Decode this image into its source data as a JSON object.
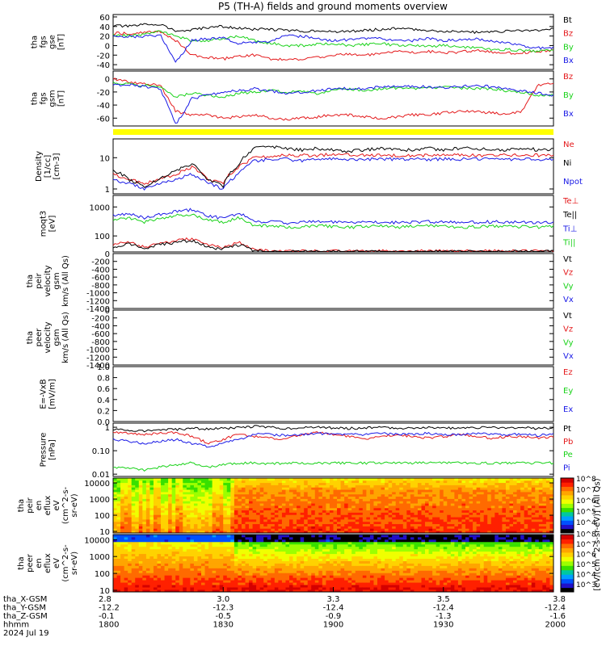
{
  "title": "P5 (TH-A) fields and ground moments overview",
  "colors": {
    "black": "#000000",
    "red": "#e41a1c",
    "green": "#19d219",
    "blue": "#1a1ae6",
    "yellow": "#ffff00"
  },
  "chart_data": [
    {
      "id": "fgs_gse",
      "type": "line",
      "ylabel": [
        "tha",
        "fgs",
        "gse",
        "[nT]"
      ],
      "ylim": [
        -50,
        65
      ],
      "yticks": [
        -40,
        -20,
        0,
        20,
        40,
        60
      ],
      "tick_labels": [
        "-40",
        "-20",
        "0",
        "20",
        "40",
        "60"
      ],
      "log": false,
      "series": [
        {
          "name": "Bt",
          "color": "black",
          "values": [
            42,
            40,
            44,
            45,
            30,
            32,
            38,
            40,
            36,
            34,
            34,
            32,
            30,
            32,
            28,
            30,
            32,
            34,
            36,
            34,
            32,
            30,
            30,
            28,
            28,
            30,
            32,
            32,
            34
          ]
        },
        {
          "name": "Bz",
          "color": "red",
          "values": [
            26,
            25,
            27,
            30,
            10,
            -20,
            -25,
            -28,
            -22,
            -20,
            -28,
            -30,
            -28,
            -25,
            -20,
            -18,
            -20,
            -18,
            -12,
            -14,
            -12,
            -15,
            -14,
            -10,
            -14,
            -16,
            -15,
            -12,
            -10
          ]
        },
        {
          "name": "By",
          "color": "green",
          "values": [
            22,
            20,
            24,
            30,
            20,
            10,
            10,
            15,
            20,
            10,
            5,
            0,
            0,
            3,
            5,
            0,
            2,
            5,
            0,
            0,
            -2,
            0,
            -4,
            -5,
            -8,
            -8,
            -10,
            -12,
            -10
          ]
        },
        {
          "name": "Bx",
          "color": "blue",
          "values": [
            20,
            18,
            19,
            22,
            -35,
            10,
            15,
            15,
            5,
            5,
            10,
            20,
            20,
            15,
            10,
            12,
            15,
            15,
            10,
            10,
            15,
            10,
            12,
            15,
            10,
            5,
            0,
            -5,
            -5
          ]
        }
      ]
    },
    {
      "id": "fgs_gsm",
      "type": "line",
      "ylabel": [
        "tha",
        "fgs",
        "gsm",
        "[nT]"
      ],
      "ylim": [
        -72,
        12
      ],
      "yticks": [
        -60,
        -40,
        -20,
        0
      ],
      "tick_labels": [
        "-60",
        "-40",
        "-20",
        "0"
      ],
      "log": false,
      "series": [
        {
          "name": "Bz",
          "color": "red",
          "values": [
            0,
            -5,
            -8,
            -10,
            -50,
            -55,
            -55,
            -60,
            -58,
            -55,
            -60,
            -62,
            -60,
            -58,
            -55,
            -55,
            -58,
            -60,
            -58,
            -55,
            -55,
            -52,
            -50,
            -50,
            -52,
            -55,
            -50,
            -10,
            -5
          ]
        },
        {
          "name": "By",
          "color": "green",
          "values": [
            -5,
            -8,
            -10,
            -12,
            -28,
            -22,
            -25,
            -28,
            -22,
            -20,
            -18,
            -20,
            -20,
            -22,
            -18,
            -15,
            -18,
            -15,
            -14,
            -15,
            -14,
            -12,
            -14,
            -15,
            -15,
            -18,
            -20,
            -25,
            -25
          ]
        },
        {
          "name": "Bx",
          "color": "blue",
          "values": [
            -10,
            -8,
            -12,
            -15,
            -70,
            -30,
            -25,
            -20,
            -18,
            -15,
            -18,
            -22,
            -20,
            -18,
            -15,
            -14,
            -15,
            -12,
            -12,
            -12,
            -12,
            -14,
            -12,
            -10,
            -12,
            -15,
            -18,
            -22,
            -25
          ]
        }
      ]
    },
    {
      "id": "density",
      "type": "line",
      "ylabel": [
        "Density",
        "[1/cc]",
        "[cm-3]"
      ],
      "ylim": [
        0.7,
        40
      ],
      "yticks": [
        1,
        10
      ],
      "tick_labels": [
        "1",
        "10"
      ],
      "log": true,
      "series": [
        {
          "name": "Ne",
          "color": "red",
          "values": [
            3,
            2,
            1.5,
            2,
            3,
            5,
            2,
            1.5,
            5,
            10,
            11,
            12,
            12,
            12,
            13,
            13,
            12,
            12,
            12,
            12,
            12,
            12,
            12,
            12,
            12,
            12,
            12,
            12,
            12
          ]
        },
        {
          "name": "Ni",
          "color": "black",
          "values": [
            4,
            2,
            1.2,
            2,
            4,
            6,
            2,
            1.2,
            6,
            20,
            22,
            20,
            18,
            20,
            18,
            16,
            18,
            20,
            18,
            18,
            20,
            18,
            20,
            20,
            18,
            18,
            20,
            18,
            18
          ]
        },
        {
          "name": "Npot",
          "color": "blue",
          "values": [
            2,
            1.5,
            1,
            1.5,
            2,
            3,
            1.5,
            1,
            3,
            8,
            9,
            9,
            8,
            9,
            9,
            9,
            9,
            9,
            9,
            9,
            9,
            9,
            9,
            9,
            9,
            9,
            9,
            9,
            9
          ]
        }
      ]
    },
    {
      "id": "moments",
      "type": "line",
      "ylabel": [
        "moqt3",
        "[eV]"
      ],
      "ylim": [
        28,
        2500
      ],
      "yticks": [
        100,
        1000
      ],
      "tick_labels": [
        "100",
        "1000"
      ],
      "log": true,
      "series": [
        {
          "name": "Te⊥",
          "color": "red",
          "values": [
            50,
            60,
            40,
            55,
            70,
            80,
            50,
            40,
            60,
            32,
            30,
            30,
            30,
            30,
            30,
            30,
            30,
            30,
            30,
            30,
            30,
            30,
            30,
            30,
            30,
            30,
            30,
            30,
            30
          ]
        },
        {
          "name": "Te||",
          "color": "black",
          "values": [
            40,
            55,
            35,
            50,
            60,
            70,
            40,
            35,
            50,
            30,
            29,
            29,
            29,
            29,
            29,
            29,
            29,
            29,
            29,
            29,
            29,
            29,
            29,
            29,
            29,
            29,
            29,
            29,
            29
          ]
        },
        {
          "name": "Ti⊥",
          "color": "blue",
          "values": [
            500,
            600,
            400,
            550,
            700,
            800,
            500,
            400,
            600,
            300,
            320,
            280,
            300,
            320,
            300,
            280,
            300,
            310,
            290,
            300,
            310,
            300,
            290,
            300,
            310,
            300,
            300,
            290,
            300
          ]
        },
        {
          "name": "Ti||",
          "color": "green",
          "values": [
            350,
            420,
            300,
            400,
            500,
            550,
            350,
            300,
            420,
            220,
            230,
            200,
            210,
            230,
            210,
            200,
            210,
            220,
            200,
            210,
            220,
            210,
            200,
            210,
            220,
            210,
            210,
            200,
            210
          ]
        }
      ]
    },
    {
      "id": "peir_vel",
      "type": "line",
      "ylabel": [
        "tha",
        "peir",
        "velocity",
        "gsm",
        "km/s (All Qs)"
      ],
      "ylim": [
        -1400,
        0
      ],
      "yticks": [
        -1400,
        -1200,
        -1000,
        -800,
        -600,
        -400,
        -200,
        0
      ],
      "tick_labels": [
        "-1400",
        "-1200",
        "-1000",
        "-800",
        "-600",
        "-400",
        "-200",
        "0"
      ],
      "log": false,
      "series": [
        {
          "name": "Vt",
          "color": "black",
          "values": []
        },
        {
          "name": "Vz",
          "color": "red",
          "values": []
        },
        {
          "name": "Vy",
          "color": "green",
          "values": []
        },
        {
          "name": "Vx",
          "color": "blue",
          "values": []
        }
      ]
    },
    {
      "id": "peer_vel",
      "type": "line",
      "ylabel": [
        "tha",
        "peer",
        "velocity",
        "gsm",
        "km/s (All Qs)"
      ],
      "ylim": [
        -1400,
        0
      ],
      "yticks": [
        -1400,
        -1200,
        -1000,
        -800,
        -600,
        -400,
        -200,
        0
      ],
      "tick_labels": [
        "-1400",
        "-1200",
        "-1000",
        "-800",
        "-600",
        "-400",
        "-200",
        "0"
      ],
      "log": false,
      "series": [
        {
          "name": "Vt",
          "color": "black",
          "values": []
        },
        {
          "name": "Vz",
          "color": "red",
          "values": []
        },
        {
          "name": "Vy",
          "color": "green",
          "values": []
        },
        {
          "name": "Vx",
          "color": "blue",
          "values": []
        }
      ]
    },
    {
      "id": "efield",
      "type": "line",
      "ylabel": [
        "E=-VxB",
        "[mV/m]"
      ],
      "ylim": [
        0,
        1
      ],
      "yticks": [
        0,
        0.2,
        0.4,
        0.6,
        0.8,
        1.0
      ],
      "tick_labels": [
        "0.0",
        "0.2",
        "0.4",
        "0.6",
        "0.8",
        "1.0"
      ],
      "log": false,
      "series": [
        {
          "name": "Ez",
          "color": "red",
          "values": []
        },
        {
          "name": "Ey",
          "color": "green",
          "values": []
        },
        {
          "name": "Ex",
          "color": "blue",
          "values": []
        }
      ]
    },
    {
      "id": "pressure",
      "type": "line",
      "ylabel": [
        "Pressure",
        "[nPa]"
      ],
      "ylim": [
        0.008,
        1.5
      ],
      "yticks": [
        0.01,
        0.1,
        1
      ],
      "tick_labels": [
        "0.01",
        "0.10",
        "1"
      ],
      "log": true,
      "series": [
        {
          "name": "Pt",
          "color": "black",
          "values": [
            0.8,
            0.75,
            0.7,
            0.78,
            0.8,
            0.9,
            0.85,
            0.9,
            0.95,
            1.1,
            1.0,
            0.9,
            0.95,
            1.0,
            0.95,
            0.9,
            0.95,
            1.0,
            0.9,
            0.95,
            1.0,
            0.95,
            0.9,
            0.95,
            1.0,
            0.95,
            0.95,
            0.9,
            0.95
          ]
        },
        {
          "name": "Pb",
          "color": "red",
          "values": [
            0.6,
            0.55,
            0.5,
            0.55,
            0.6,
            0.4,
            0.2,
            0.3,
            0.5,
            0.4,
            0.35,
            0.3,
            0.5,
            0.6,
            0.5,
            0.4,
            0.3,
            0.4,
            0.5,
            0.4,
            0.35,
            0.4,
            0.5,
            0.4,
            0.35,
            0.4,
            0.4,
            0.35,
            0.4
          ]
        },
        {
          "name": "Pe",
          "color": "green",
          "values": [
            0.02,
            0.018,
            0.015,
            0.02,
            0.025,
            0.03,
            0.02,
            0.025,
            0.03,
            0.03,
            0.028,
            0.03,
            0.03,
            0.03,
            0.03,
            0.03,
            0.03,
            0.03,
            0.03,
            0.03,
            0.03,
            0.03,
            0.03,
            0.03,
            0.03,
            0.03,
            0.03,
            0.03,
            0.03
          ]
        },
        {
          "name": "Pi",
          "color": "blue",
          "values": [
            0.3,
            0.25,
            0.2,
            0.25,
            0.3,
            0.2,
            0.15,
            0.2,
            0.3,
            0.5,
            0.5,
            0.45,
            0.5,
            0.55,
            0.5,
            0.5,
            0.5,
            0.55,
            0.5,
            0.5,
            0.55,
            0.5,
            0.5,
            0.55,
            0.5,
            0.5,
            0.5,
            0.45,
            0.5
          ]
        }
      ]
    },
    {
      "id": "peir_spec",
      "type": "heatmap",
      "ylabel": [
        "tha",
        "peir",
        "en",
        "eflux",
        "eV",
        "(cm^2-s-",
        "sr-eV)"
      ],
      "ylim": [
        8,
        20000
      ],
      "yticks": [
        10,
        100,
        1000,
        10000
      ],
      "tick_labels": [
        "10",
        "100",
        "1000",
        "10000"
      ],
      "log": true,
      "colormap": "rainbow"
    },
    {
      "id": "peer_spec",
      "type": "heatmap",
      "ylabel": [
        "tha",
        "peer",
        "en",
        "eflux",
        "eV",
        "(cm^2-s-",
        "sr-eV)"
      ],
      "ylim": [
        8,
        20000
      ],
      "yticks": [
        10,
        100,
        1000,
        10000
      ],
      "tick_labels": [
        "10",
        "100",
        "1000",
        "10000"
      ],
      "log": true,
      "colormap": "rainbow"
    }
  ],
  "colorbar": {
    "label": "[eV/(cm^2-s-sr-eV)] (All Qs)",
    "upper_ticks": [
      "10^4",
      "10^5",
      "10^6",
      "10^7",
      "10^8"
    ],
    "lower_ticks": [
      "10^3",
      "10^4",
      "10^5",
      "10^6",
      "10^7",
      "10^8"
    ]
  },
  "x_axis": {
    "row_labels": [
      "tha_X-GSM",
      "tha_Y-GSM",
      "tha_Z-GSM",
      "hhmm",
      "2024 Jul 19"
    ],
    "ticks": [
      {
        "x": "2.8",
        "y": "-12.2",
        "z": "-0.1",
        "t": "1800"
      },
      {
        "x": "3.0",
        "y": "-12.3",
        "z": "-0.5",
        "t": "1830"
      },
      {
        "x": "3.3",
        "y": "-12.4",
        "z": "-0.9",
        "t": "1900"
      },
      {
        "x": "3.5",
        "y": "-12.4",
        "z": "-1.3",
        "t": "1930"
      },
      {
        "x": "3.8",
        "y": "-12.4",
        "z": "-1.6",
        "t": "2000"
      }
    ]
  }
}
